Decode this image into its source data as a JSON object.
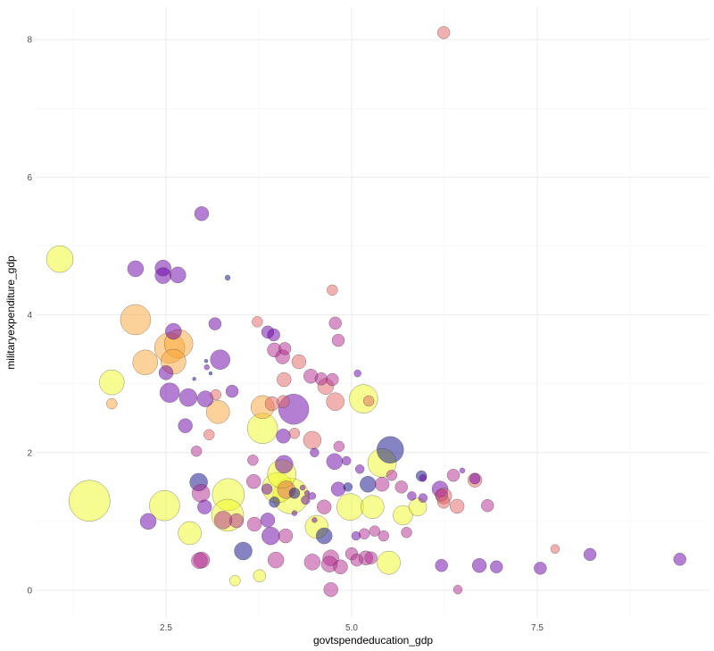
{
  "chart_data": {
    "type": "scatter",
    "title": "",
    "xlabel": "govtspendeducation_gdp",
    "ylabel": "militaryexpenditure_gdp",
    "xlim": [
      0.74,
      9.8
    ],
    "ylim": [
      -0.35,
      8.4
    ],
    "x_ticks": [
      2.5,
      5.0,
      7.5
    ],
    "x_tick_labels": [
      "2.5",
      "5.0",
      "7.5"
    ],
    "y_ticks": [
      0,
      2,
      4,
      6,
      8
    ],
    "y_tick_labels": [
      "0",
      "2",
      "4",
      "6",
      "8"
    ],
    "grid": true,
    "legend": "none",
    "bubble_size_relative": true,
    "color_palette": [
      "#0d0887",
      "#6a00a8",
      "#b12a90",
      "#e16462",
      "#fca636",
      "#f0f921"
    ],
    "point_fields": [
      "x",
      "y",
      "size",
      "color_group"
    ],
    "points": [
      [
        6.24,
        8.1,
        7,
        3
      ],
      [
        1.07,
        4.81,
        15,
        5
      ],
      [
        2.98,
        5.47,
        8,
        1
      ],
      [
        2.09,
        4.67,
        9,
        1
      ],
      [
        2.46,
        4.68,
        9,
        1
      ],
      [
        2.46,
        4.57,
        9,
        1
      ],
      [
        2.66,
        4.58,
        9,
        1
      ],
      [
        3.33,
        4.54,
        3,
        0
      ],
      [
        2.09,
        3.93,
        17,
        4
      ],
      [
        2.6,
        3.76,
        9,
        1
      ],
      [
        3.16,
        3.87,
        7,
        1
      ],
      [
        2.55,
        3.52,
        17,
        4
      ],
      [
        2.67,
        3.58,
        16,
        4
      ],
      [
        2.22,
        3.31,
        14,
        4
      ],
      [
        2.6,
        3.32,
        14,
        4
      ],
      [
        2.5,
        3.16,
        8,
        1
      ],
      [
        3.23,
        3.35,
        11,
        1
      ],
      [
        1.77,
        3.02,
        14,
        5
      ],
      [
        1.77,
        2.71,
        6,
        4
      ],
      [
        2.55,
        2.87,
        11,
        1
      ],
      [
        2.8,
        2.8,
        10,
        1
      ],
      [
        3.03,
        2.78,
        9,
        1
      ],
      [
        3.17,
        2.84,
        6,
        3
      ],
      [
        3.2,
        2.59,
        13,
        4
      ],
      [
        3.39,
        2.89,
        7,
        1
      ],
      [
        2.76,
        2.39,
        8,
        1
      ],
      [
        3.08,
        2.26,
        6,
        3
      ],
      [
        2.91,
        2.02,
        6,
        2
      ],
      [
        2.94,
        1.57,
        10,
        0
      ],
      [
        2.97,
        1.41,
        10,
        2
      ],
      [
        2.48,
        1.23,
        17,
        5
      ],
      [
        1.47,
        1.3,
        23,
        5
      ],
      [
        2.26,
        1.0,
        9,
        1
      ],
      [
        2.82,
        0.83,
        13,
        5
      ],
      [
        3.34,
        1.39,
        18,
        5
      ],
      [
        3.33,
        1.09,
        18,
        5
      ],
      [
        2.98,
        0.44,
        9,
        2
      ],
      [
        2.95,
        0.43,
        9,
        2
      ],
      [
        3.43,
        0.14,
        6,
        5
      ],
      [
        3.54,
        0.57,
        10,
        0
      ],
      [
        3.76,
        0.21,
        7,
        5
      ],
      [
        3.8,
        2.35,
        17,
        5
      ],
      [
        3.8,
        2.66,
        13,
        4
      ],
      [
        3.87,
        3.75,
        7,
        1
      ],
      [
        3.95,
        3.71,
        7,
        1
      ],
      [
        3.96,
        3.49,
        8,
        2
      ],
      [
        4.07,
        3.39,
        8,
        2
      ],
      [
        4.1,
        3.51,
        7,
        2
      ],
      [
        4.09,
        3.06,
        8,
        3
      ],
      [
        3.93,
        2.71,
        8,
        3
      ],
      [
        4.08,
        2.74,
        7,
        3
      ],
      [
        4.22,
        2.63,
        17,
        1
      ],
      [
        3.73,
        3.9,
        6,
        3
      ],
      [
        4.29,
        3.32,
        8,
        3
      ],
      [
        4.45,
        3.11,
        8,
        2
      ],
      [
        4.59,
        3.07,
        7,
        2
      ],
      [
        4.65,
        2.96,
        9,
        3
      ],
      [
        4.74,
        3.06,
        7,
        2
      ],
      [
        4.74,
        4.36,
        6,
        3
      ],
      [
        4.78,
        3.88,
        7,
        2
      ],
      [
        4.82,
        3.63,
        7,
        2
      ],
      [
        4.78,
        2.74,
        10,
        3
      ],
      [
        5.08,
        3.15,
        4,
        1
      ],
      [
        5.16,
        2.78,
        16,
        5
      ],
      [
        5.23,
        2.75,
        6,
        3
      ],
      [
        4.47,
        2.18,
        10,
        3
      ],
      [
        4.23,
        2.28,
        6,
        3
      ],
      [
        4.08,
        2.24,
        8,
        1
      ],
      [
        4.83,
        2.09,
        6,
        2
      ],
      [
        4.5,
        2.0,
        5,
        1
      ],
      [
        5.52,
        2.04,
        15,
        0
      ],
      [
        5.41,
        1.85,
        16,
        5
      ],
      [
        4.93,
        1.88,
        5,
        1
      ],
      [
        5.11,
        1.76,
        5,
        1
      ],
      [
        4.77,
        1.87,
        9,
        1
      ],
      [
        4.09,
        1.83,
        10,
        1
      ],
      [
        4.06,
        1.69,
        16,
        5
      ],
      [
        4.0,
        1.49,
        17,
        5
      ],
      [
        4.18,
        1.37,
        20,
        5
      ],
      [
        4.12,
        1.46,
        10,
        3
      ],
      [
        4.23,
        1.41,
        6,
        0
      ],
      [
        3.87,
        1.02,
        8,
        1
      ],
      [
        3.96,
        1.28,
        6,
        0
      ],
      [
        3.91,
        0.79,
        10,
        1
      ],
      [
        4.11,
        0.79,
        8,
        2
      ],
      [
        3.69,
        0.96,
        8,
        2
      ],
      [
        3.45,
        1.01,
        8,
        2
      ],
      [
        3.27,
        1.02,
        10,
        2
      ],
      [
        3.02,
        1.21,
        8,
        1
      ],
      [
        3.86,
        1.47,
        6,
        1
      ],
      [
        3.68,
        1.58,
        8,
        2
      ],
      [
        3.67,
        1.89,
        6,
        2
      ],
      [
        4.38,
        1.31,
        5,
        1
      ],
      [
        4.47,
        1.37,
        4,
        1
      ],
      [
        4.63,
        0.79,
        9,
        0
      ],
      [
        4.53,
        0.92,
        13,
        5
      ],
      [
        4.98,
        1.21,
        15,
        5
      ],
      [
        5.28,
        1.21,
        13,
        5
      ],
      [
        4.63,
        1.21,
        8,
        2
      ],
      [
        4.82,
        1.47,
        8,
        1
      ],
      [
        4.95,
        1.5,
        5,
        0
      ],
      [
        5.22,
        1.54,
        9,
        0
      ],
      [
        5.41,
        1.54,
        8,
        2
      ],
      [
        5.67,
        1.5,
        7,
        2
      ],
      [
        5.89,
        1.21,
        10,
        5
      ],
      [
        5.69,
        1.09,
        11,
        5
      ],
      [
        5.81,
        1.37,
        5,
        1
      ],
      [
        5.96,
        1.34,
        5,
        1
      ],
      [
        5.96,
        1.63,
        4,
        1
      ],
      [
        6.19,
        1.47,
        9,
        1
      ],
      [
        6.21,
        1.38,
        7,
        2
      ],
      [
        6.24,
        1.37,
        9,
        3
      ],
      [
        6.24,
        1.28,
        7,
        3
      ],
      [
        6.37,
        1.67,
        7,
        2
      ],
      [
        6.42,
        1.22,
        8,
        3
      ],
      [
        6.66,
        1.6,
        8,
        3
      ],
      [
        6.66,
        1.62,
        6,
        1
      ],
      [
        6.83,
        1.23,
        7,
        2
      ],
      [
        6.49,
        1.74,
        3,
        1
      ],
      [
        5.94,
        1.66,
        6,
        0
      ],
      [
        5.5,
        0.4,
        13,
        5
      ],
      [
        5.0,
        0.53,
        7,
        2
      ],
      [
        5.07,
        0.44,
        7,
        2
      ],
      [
        5.19,
        0.47,
        8,
        2
      ],
      [
        5.26,
        0.47,
        7,
        2
      ],
      [
        4.72,
        0.47,
        9,
        2
      ],
      [
        4.7,
        0.38,
        9,
        2
      ],
      [
        4.85,
        0.34,
        8,
        2
      ],
      [
        4.47,
        0.41,
        9,
        2
      ],
      [
        3.98,
        0.44,
        9,
        2
      ],
      [
        4.72,
        0.01,
        8,
        2
      ],
      [
        5.06,
        0.79,
        5,
        1
      ],
      [
        5.17,
        0.82,
        6,
        2
      ],
      [
        5.31,
        0.86,
        6,
        2
      ],
      [
        5.43,
        0.79,
        6,
        2
      ],
      [
        5.74,
        0.84,
        6,
        2
      ],
      [
        6.21,
        0.36,
        7,
        1
      ],
      [
        6.72,
        0.36,
        8,
        1
      ],
      [
        6.95,
        0.34,
        7,
        1
      ],
      [
        7.54,
        0.32,
        7,
        1
      ],
      [
        6.43,
        0.01,
        5,
        2
      ],
      [
        7.74,
        0.6,
        5,
        3
      ],
      [
        8.21,
        0.52,
        7,
        1
      ],
      [
        9.42,
        0.45,
        7,
        1
      ],
      [
        3.05,
        3.24,
        3,
        1
      ],
      [
        3.1,
        3.15,
        2,
        0
      ],
      [
        2.88,
        3.07,
        2,
        0
      ],
      [
        3.04,
        3.33,
        2,
        0
      ],
      [
        4.34,
        1.49,
        3,
        1
      ],
      [
        4.4,
        1.41,
        3,
        1
      ],
      [
        4.23,
        1.12,
        3,
        1
      ],
      [
        4.5,
        1.02,
        3,
        1
      ],
      [
        5.54,
        1.67,
        6,
        2
      ]
    ]
  }
}
